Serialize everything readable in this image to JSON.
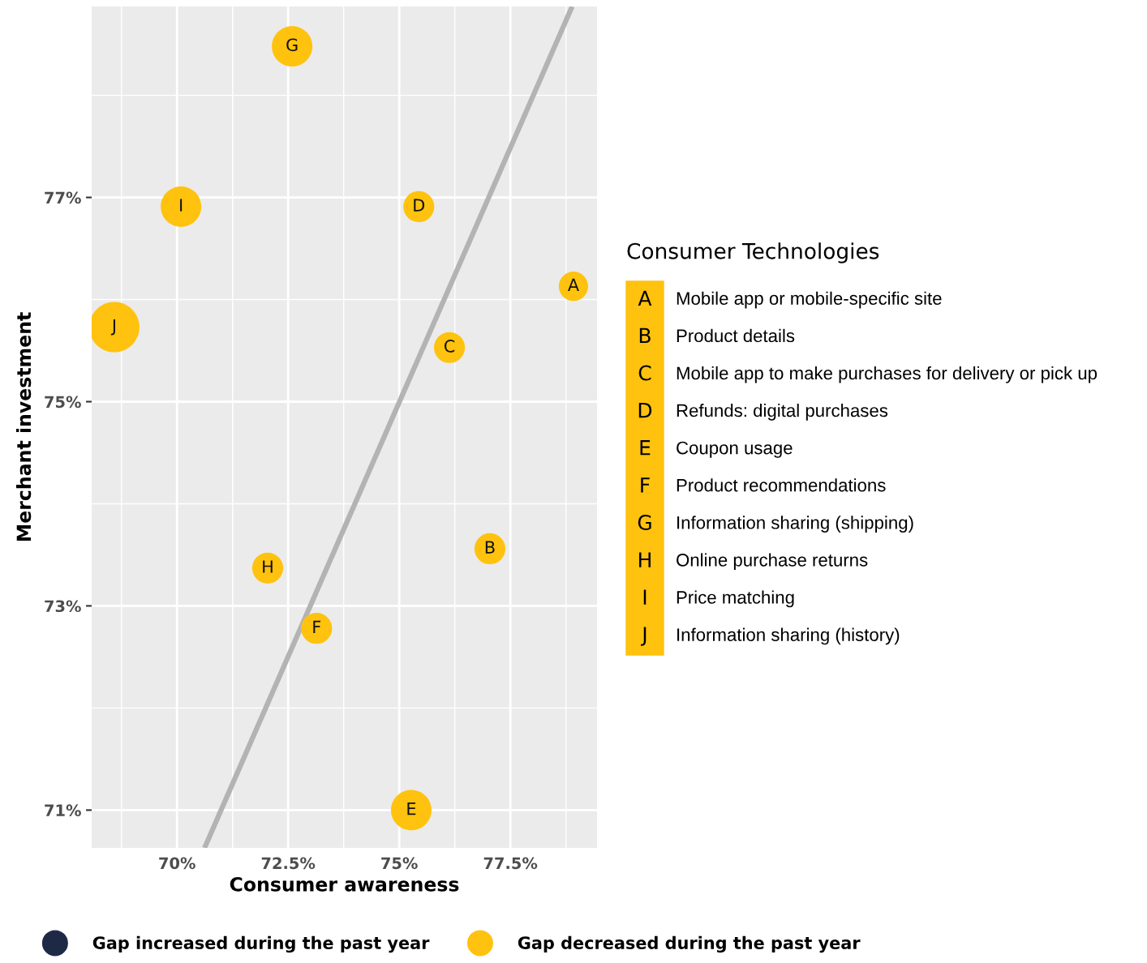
{
  "chart_data": {
    "type": "bubble",
    "xlabel": "Consumer awareness",
    "ylabel": "Merchant investment",
    "legend_title": "Consumer Technologies",
    "xlim": [
      68.08,
      79.45
    ],
    "ylim": [
      70.63,
      78.87
    ],
    "xticks": [
      {
        "value": 70,
        "label": "70%"
      },
      {
        "value": 72.5,
        "label": "72.5%"
      },
      {
        "value": 75,
        "label": "75%"
      },
      {
        "value": 77.5,
        "label": "77.5%"
      }
    ],
    "yticks": [
      {
        "value": 71,
        "label": "71%"
      },
      {
        "value": 73,
        "label": "73%"
      },
      {
        "value": 75,
        "label": "75%"
      },
      {
        "value": 77,
        "label": "77%"
      }
    ],
    "grid": true,
    "legend": "bottom",
    "series": [
      {
        "name": "Gap increased during the past year",
        "color": "#1e2a45",
        "marker": "circle"
      },
      {
        "name": "Gap decreased during the past year",
        "color": "#ffc20e",
        "marker": "circle",
        "x": [
          78.92,
          77.04,
          76.13,
          75.44,
          75.27,
          73.14,
          72.59,
          72.04,
          70.09,
          68.59
        ],
        "values": [
          76.13,
          73.56,
          75.53,
          76.91,
          71.0,
          72.78,
          78.48,
          73.37,
          76.91,
          75.73
        ],
        "sizes": [
          0.34,
          0.38,
          0.38,
          0.38,
          0.65,
          0.38,
          0.65,
          0.38,
          0.65,
          1
        ],
        "value_labels": [
          "A",
          "B",
          "C",
          "D",
          "E",
          "F",
          "G",
          "H",
          "I",
          "J"
        ]
      },
      {
        "type": "line",
        "marker": "none",
        "color": "#b3b3b3",
        "x": [
          70.62,
          78.89
        ],
        "values": [
          70.63,
          78.87
        ]
      }
    ],
    "annotations": [
      "Mobile app or mobile-specific site",
      "Product details",
      "Mobile app to make purchases for delivery or pick up",
      "Refunds: digital purchases",
      "Coupon usage",
      "Product recommendations",
      "Information sharing (shipping)",
      "Online purchase returns",
      "Price matching",
      "Information sharing (history)"
    ]
  }
}
